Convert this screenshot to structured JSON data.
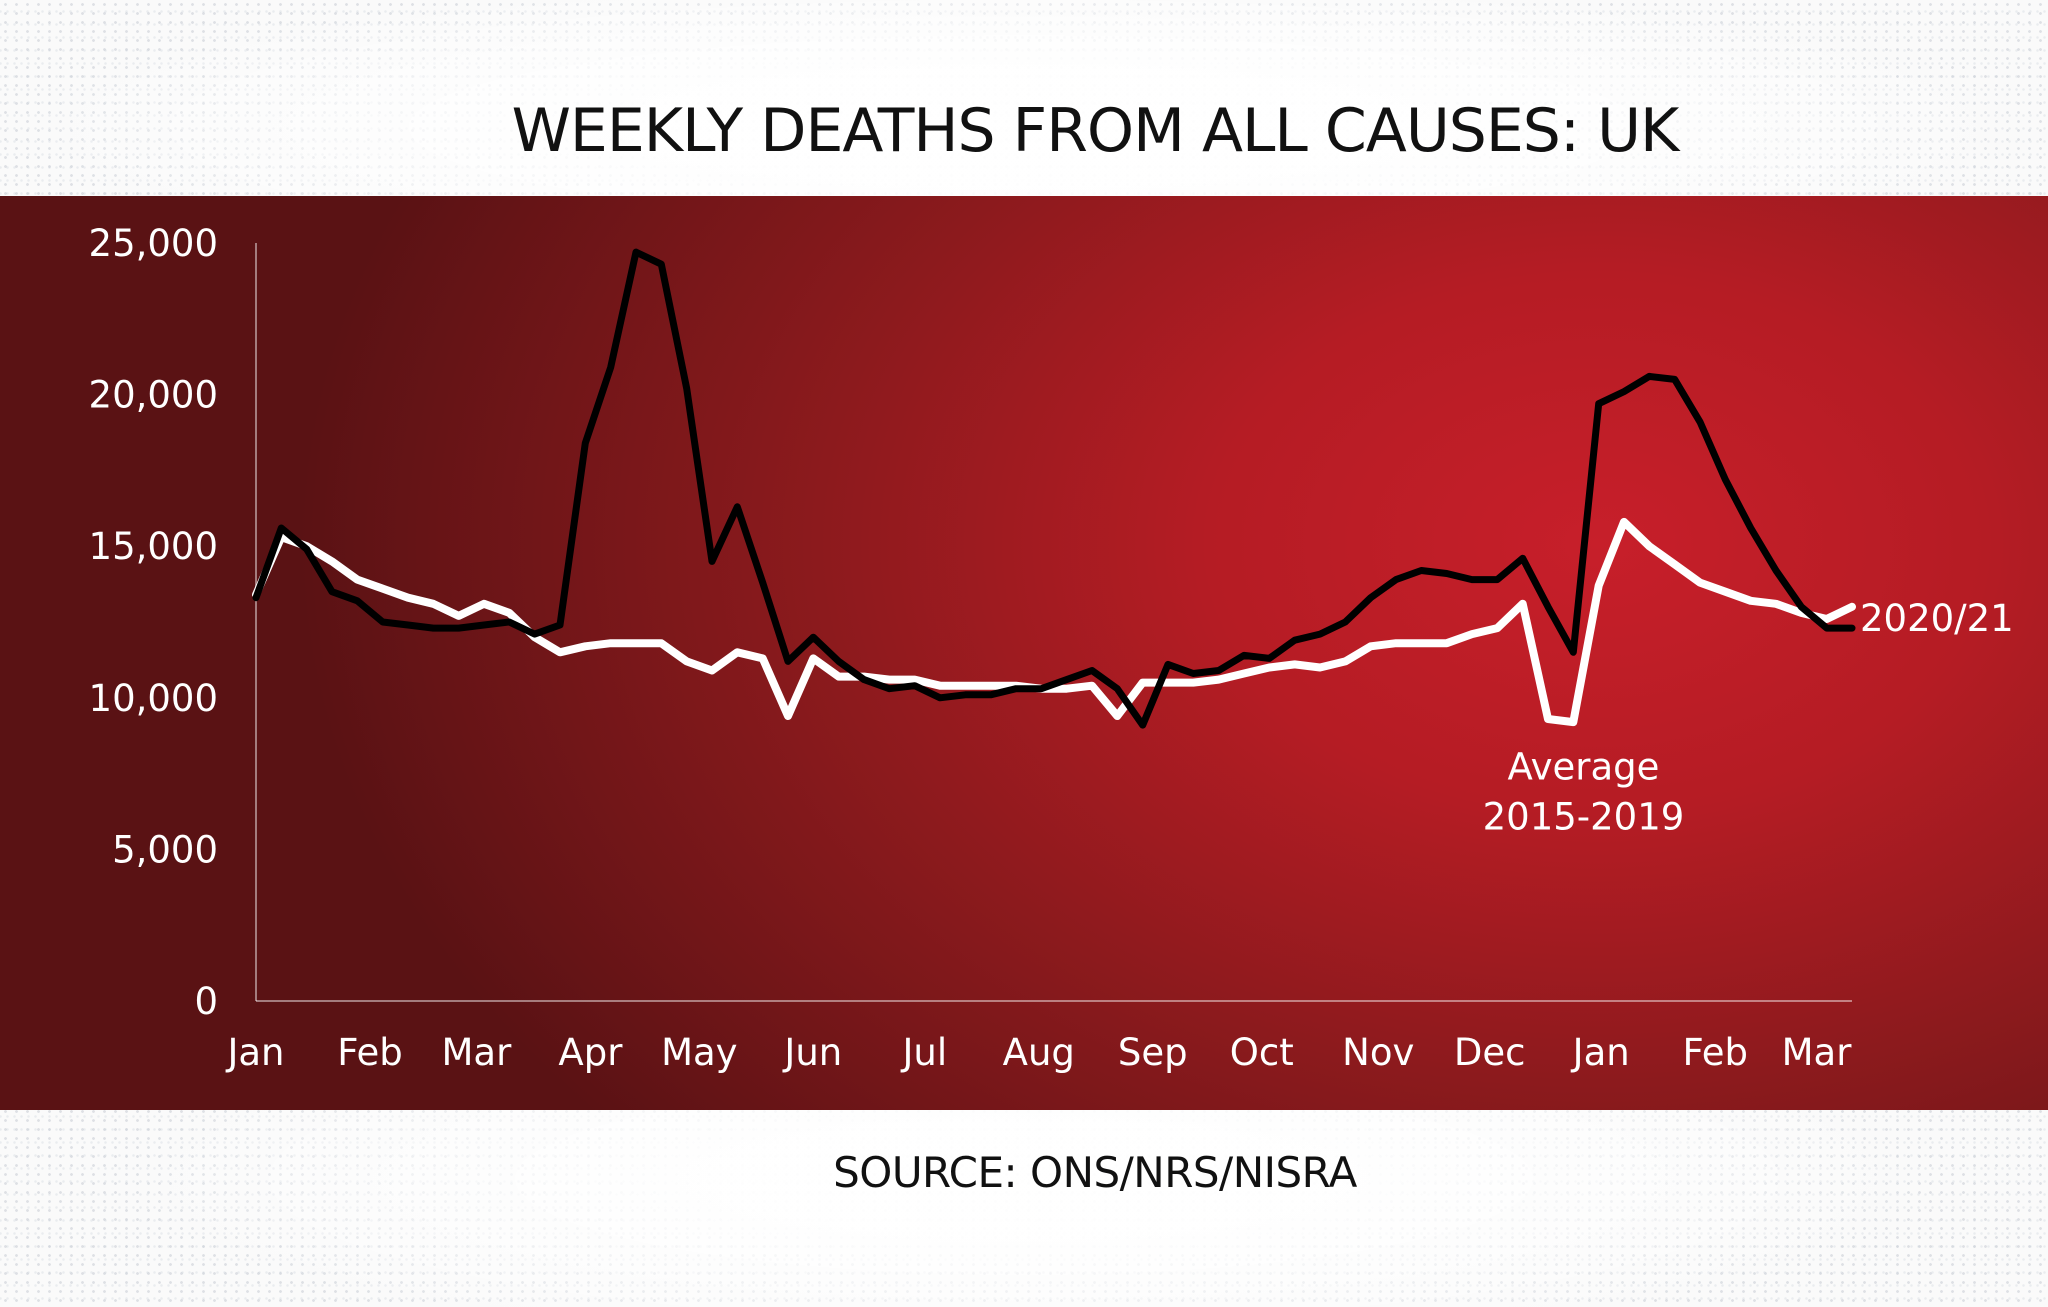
{
  "page": {
    "title": "WEEKLY DEATHS FROM ALL CAUSES: UK",
    "source": "SOURCE: ONS/NRS/NISRA"
  },
  "colors": {
    "panel_red": "#b51c24",
    "series_2020": "#000000",
    "series_avg": "#ffffff"
  },
  "chart_data": {
    "type": "line",
    "title": "WEEKLY DEATHS FROM ALL CAUSES: UK",
    "xlabel": "",
    "ylabel": "",
    "ylim": [
      0,
      25000
    ],
    "yticks": [
      0,
      5000,
      10000,
      15000,
      20000,
      25000
    ],
    "ytick_labels": [
      "0",
      "5,000",
      "10,000",
      "15,000",
      "20,000",
      "25,000"
    ],
    "xlim": [
      1,
      64
    ],
    "x_ticks": [
      {
        "label": "Jan",
        "x": 1
      },
      {
        "label": "Feb",
        "x": 5.5
      },
      {
        "label": "Mar",
        "x": 9.7
      },
      {
        "label": "Apr",
        "x": 14.2
      },
      {
        "label": "May",
        "x": 18.5
      },
      {
        "label": "Jun",
        "x": 23
      },
      {
        "label": "Jul",
        "x": 27.4
      },
      {
        "label": "Aug",
        "x": 31.9
      },
      {
        "label": "Sep",
        "x": 36.4
      },
      {
        "label": "Oct",
        "x": 40.7
      },
      {
        "label": "Nov",
        "x": 45.3
      },
      {
        "label": "Dec",
        "x": 49.7
      },
      {
        "label": "Jan",
        "x": 54.1
      },
      {
        "label": "Feb",
        "x": 58.6
      },
      {
        "label": "Mar",
        "x": 62.6
      }
    ],
    "annotations": [
      {
        "text": "2020/21",
        "series": "2020/21"
      },
      {
        "text_lines": [
          "Average",
          "2015-2019"
        ],
        "series": "Average 2015-2019"
      }
    ],
    "series": [
      {
        "name": "2020/21",
        "color": "#000000",
        "x": [
          1,
          2,
          3,
          4,
          5,
          6,
          7,
          8,
          9,
          10,
          11,
          12,
          13,
          14,
          15,
          16,
          17,
          18,
          19,
          20,
          21,
          22,
          23,
          24,
          25,
          26,
          27,
          28,
          29,
          30,
          31,
          32,
          33,
          34,
          35,
          36,
          37,
          38,
          39,
          40,
          41,
          42,
          43,
          44,
          45,
          46,
          47,
          48,
          49,
          50,
          51,
          52,
          53,
          54,
          55,
          56,
          57,
          58,
          59,
          60,
          61,
          62,
          63,
          64
        ],
        "values": [
          13300,
          15600,
          14900,
          13500,
          13200,
          12500,
          12400,
          12300,
          12300,
          12400,
          12500,
          12100,
          12400,
          18400,
          20900,
          24700,
          24300,
          20200,
          14500,
          16300,
          13800,
          11200,
          12000,
          11200,
          10600,
          10300,
          10400,
          10000,
          10100,
          10100,
          10300,
          10300,
          10600,
          10900,
          10300,
          9100,
          11100,
          10800,
          10900,
          11400,
          11300,
          11900,
          12100,
          12500,
          13300,
          13900,
          14200,
          14100,
          13900,
          13900,
          14600,
          13000,
          11500,
          19700,
          20100,
          20600,
          20500,
          19100,
          17200,
          15600,
          14200,
          13000,
          12300,
          12300
        ]
      },
      {
        "name": "Average 2015-2019",
        "color": "#ffffff",
        "x": [
          1,
          2,
          3,
          4,
          5,
          6,
          7,
          8,
          9,
          10,
          11,
          12,
          13,
          14,
          15,
          16,
          17,
          18,
          19,
          20,
          21,
          22,
          23,
          24,
          25,
          26,
          27,
          28,
          29,
          30,
          31,
          32,
          33,
          34,
          35,
          36,
          37,
          38,
          39,
          40,
          41,
          42,
          43,
          44,
          45,
          46,
          47,
          48,
          49,
          50,
          51,
          52,
          53,
          54,
          55,
          56,
          57,
          58,
          59,
          60,
          61,
          62,
          63,
          64
        ],
        "values": [
          13400,
          15300,
          15000,
          14500,
          13900,
          13600,
          13300,
          13100,
          12700,
          13100,
          12800,
          12000,
          11500,
          11700,
          11800,
          11800,
          11800,
          11200,
          10900,
          11500,
          11300,
          9400,
          11300,
          10700,
          10700,
          10600,
          10600,
          10400,
          10400,
          10400,
          10400,
          10300,
          10300,
          10400,
          9400,
          10500,
          10500,
          10500,
          10600,
          10800,
          11000,
          11100,
          11000,
          11200,
          11700,
          11800,
          11800,
          11800,
          12100,
          12300,
          13100,
          9300,
          9200,
          13700,
          15800,
          15000,
          14400,
          13800,
          13500,
          13200,
          13100,
          12800,
          12600,
          13000
        ]
      }
    ]
  }
}
